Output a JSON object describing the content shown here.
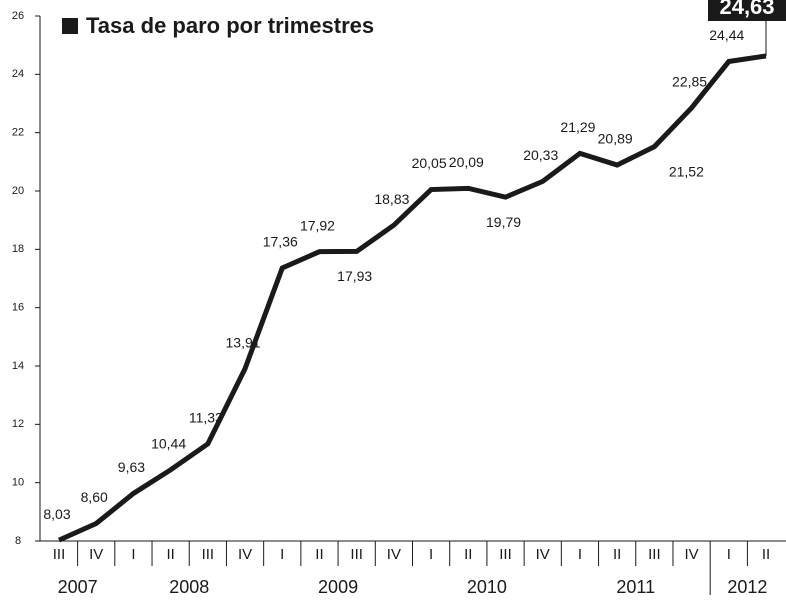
{
  "chart_data": {
    "type": "line",
    "title": "Tasa de paro por trimestres",
    "categories": [
      "III",
      "IV",
      "I",
      "II",
      "III",
      "IV",
      "I",
      "II",
      "III",
      "IV",
      "I",
      "II",
      "III",
      "IV",
      "I",
      "II",
      "III",
      "IV",
      "I",
      "II"
    ],
    "years": [
      "2007",
      "2008",
      "2009",
      "2010",
      "2011",
      "2012"
    ],
    "series": [
      {
        "name": "Tasa de paro",
        "color": "#1a1a1a",
        "values": [
          8.03,
          8.6,
          9.63,
          10.44,
          11.33,
          13.91,
          17.36,
          17.92,
          17.93,
          18.83,
          20.05,
          20.09,
          19.79,
          20.33,
          21.29,
          20.89,
          21.52,
          22.85,
          24.44,
          24.63
        ],
        "value_labels": [
          "8,03",
          "8,60",
          "9,63",
          "10,44",
          "11,33",
          "13,91",
          "17,36",
          "17,92",
          "17,93",
          "18,83",
          "20,05",
          "20,09",
          "19,79",
          "20,33",
          "21,29",
          "20,89",
          "21,52",
          "22,85",
          "24,44",
          "24,63"
        ]
      }
    ],
    "ylim": [
      8,
      26
    ],
    "yticks": [
      8,
      10,
      12,
      14,
      16,
      18,
      20,
      22,
      24,
      26
    ]
  }
}
